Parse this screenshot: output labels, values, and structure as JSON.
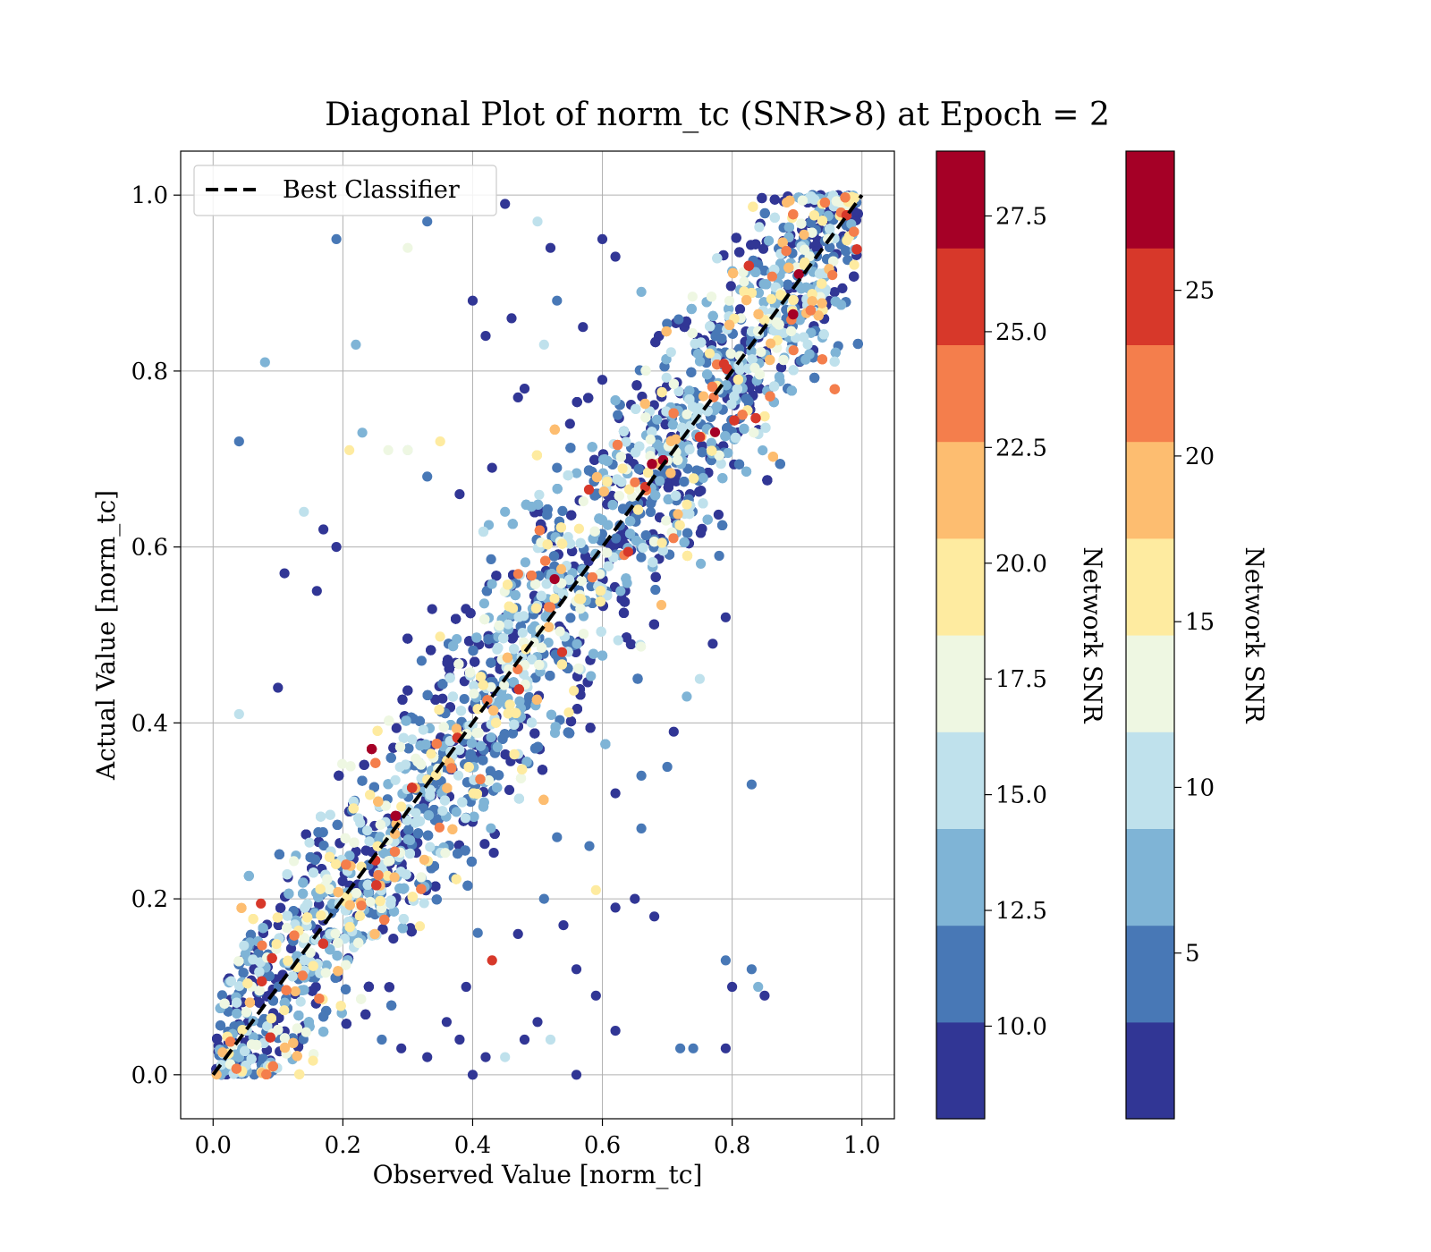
{
  "chart_data": {
    "type": "scatter",
    "title": "Diagonal Plot of norm_tc (SNR>8) at Epoch = 2",
    "xlabel": "Observed Value [norm_tc]",
    "ylabel": "Actual Value [norm_tc]",
    "xlim": [
      -0.05,
      1.05
    ],
    "ylim": [
      -0.05,
      1.05
    ],
    "xticks": [
      "0.0",
      "0.2",
      "0.4",
      "0.6",
      "0.8",
      "1.0"
    ],
    "yticks": [
      "0.0",
      "0.2",
      "0.4",
      "0.6",
      "0.8",
      "1.0"
    ],
    "grid": true,
    "legend": {
      "placement": "upper-left",
      "entries": [
        {
          "label": "Best Classifier",
          "style": "dashed",
          "color": "#000000"
        }
      ]
    },
    "reference_line": {
      "x": [
        0,
        1
      ],
      "y": [
        0,
        1
      ]
    },
    "colormap": [
      "#313695",
      "#4575b4",
      "#74add1",
      "#abd9e9",
      "#e0f3f8",
      "#ffffbf",
      "#fee090",
      "#fdae61",
      "#f46d43",
      "#d73027",
      "#a50026"
    ],
    "bin_colors": [
      "#313695",
      "#4878b6",
      "#7fb4d6",
      "#bfe1ec",
      "#eef7e2",
      "#feeba0",
      "#fdbd70",
      "#f47e4c",
      "#d7382a",
      "#a50026"
    ],
    "colorbars": [
      {
        "label": "Network SNR",
        "range": [
          8,
          28.9
        ],
        "ticks": [
          10.0,
          12.5,
          15.0,
          17.5,
          20.0,
          22.5,
          25.0,
          27.5
        ],
        "tick_labels": [
          "10.0",
          "12.5",
          "15.0",
          "17.5",
          "20.0",
          "22.5",
          "25.0",
          "27.5"
        ]
      },
      {
        "label": "Network SNR",
        "range": [
          0,
          29.2
        ],
        "ticks": [
          5,
          10,
          15,
          20,
          25
        ],
        "tick_labels": [
          "5",
          "10",
          "15",
          "20",
          "25"
        ]
      }
    ],
    "outliers": [
      [
        0.19,
        0.95,
        11.3
      ],
      [
        0.08,
        0.81,
        12.2
      ],
      [
        0.04,
        0.72,
        12.0
      ],
      [
        0.22,
        0.83,
        13.0
      ],
      [
        0.33,
        0.97,
        11.5
      ],
      [
        0.3,
        0.94,
        17.0
      ],
      [
        0.45,
        0.99,
        9.5
      ],
      [
        0.5,
        0.97,
        15.0
      ],
      [
        0.53,
        0.88,
        11.0
      ],
      [
        0.57,
        0.85,
        9.5
      ],
      [
        0.6,
        0.95,
        10.0
      ],
      [
        0.62,
        0.93,
        9.0
      ],
      [
        0.66,
        0.89,
        13.0
      ],
      [
        0.42,
        0.84,
        8.5
      ],
      [
        0.46,
        0.86,
        8.5
      ],
      [
        0.51,
        0.83,
        14.5
      ],
      [
        0.47,
        0.77,
        9.0
      ],
      [
        0.38,
        0.66,
        10.0
      ],
      [
        0.33,
        0.68,
        11.5
      ],
      [
        0.35,
        0.72,
        18.5
      ],
      [
        0.27,
        0.71,
        18.0
      ],
      [
        0.3,
        0.71,
        16.5
      ],
      [
        0.21,
        0.71,
        19.0
      ],
      [
        0.23,
        0.73,
        14.0
      ],
      [
        0.14,
        0.64,
        15.0
      ],
      [
        0.17,
        0.62,
        9.0
      ],
      [
        0.19,
        0.6,
        9.5
      ],
      [
        0.11,
        0.57,
        10.0
      ],
      [
        0.16,
        0.55,
        9.5
      ],
      [
        0.1,
        0.44,
        9.0
      ],
      [
        0.04,
        0.41,
        15.0
      ],
      [
        0.48,
        0.78,
        9.0
      ],
      [
        0.55,
        0.74,
        10.0
      ],
      [
        0.6,
        0.79,
        9.0
      ],
      [
        0.53,
        0.69,
        11.0
      ],
      [
        0.78,
        0.59,
        12.0
      ],
      [
        0.79,
        0.52,
        9.5
      ],
      [
        0.77,
        0.49,
        10.0
      ],
      [
        0.75,
        0.45,
        15.5
      ],
      [
        0.73,
        0.43,
        12.5
      ],
      [
        0.7,
        0.35,
        11.5
      ],
      [
        0.71,
        0.39,
        10.0
      ],
      [
        0.83,
        0.33,
        12.0
      ],
      [
        0.66,
        0.28,
        11.0
      ],
      [
        0.62,
        0.19,
        9.5
      ],
      [
        0.65,
        0.2,
        9.0
      ],
      [
        0.68,
        0.18,
        10.0
      ],
      [
        0.59,
        0.21,
        18.5
      ],
      [
        0.51,
        0.2,
        12.0
      ],
      [
        0.56,
        0.12,
        9.0
      ],
      [
        0.5,
        0.06,
        10.0
      ],
      [
        0.48,
        0.04,
        9.5
      ],
      [
        0.45,
        0.02,
        16.0
      ],
      [
        0.42,
        0.02,
        9.0
      ],
      [
        0.38,
        0.04,
        10.0
      ],
      [
        0.4,
        0.0,
        9.0
      ],
      [
        0.36,
        0.06,
        9.5
      ],
      [
        0.43,
        0.13,
        25.5
      ],
      [
        0.39,
        0.1,
        9.0
      ],
      [
        0.56,
        0.0,
        9.0
      ],
      [
        0.59,
        0.09,
        9.5
      ],
      [
        0.62,
        0.05,
        10.0
      ],
      [
        0.72,
        0.03,
        11.0
      ],
      [
        0.74,
        0.03,
        12.0
      ],
      [
        0.79,
        0.03,
        9.5
      ],
      [
        0.79,
        0.13,
        12.0
      ],
      [
        0.83,
        0.12,
        11.5
      ],
      [
        0.84,
        0.1,
        12.5
      ],
      [
        0.85,
        0.09,
        9.0
      ],
      [
        0.8,
        0.1,
        9.0
      ],
      [
        0.52,
        0.04,
        14.5
      ],
      [
        0.33,
        0.02,
        9.5
      ],
      [
        0.29,
        0.03,
        9.0
      ],
      [
        0.26,
        0.04,
        12.0
      ],
      [
        0.47,
        0.16,
        10.0
      ],
      [
        0.54,
        0.17,
        9.5
      ],
      [
        0.62,
        0.32,
        10.0
      ],
      [
        0.66,
        0.34,
        12.0
      ],
      [
        0.58,
        0.26,
        11.0
      ],
      [
        0.53,
        0.27,
        10.5
      ],
      [
        0.3,
        0.71,
        16.0
      ],
      [
        0.45,
        0.64,
        13.0
      ],
      [
        0.43,
        0.69,
        9.0
      ],
      [
        0.4,
        0.88,
        9.0
      ],
      [
        0.52,
        0.94,
        9.5
      ]
    ]
  }
}
